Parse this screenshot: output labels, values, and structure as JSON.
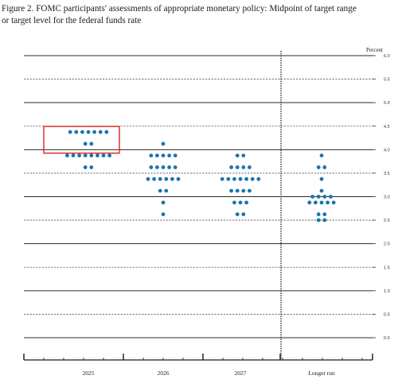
{
  "figure": {
    "caption_line1": "Figure 2. FOMC participants' assessments of appropriate monetary policy: Midpoint of target range",
    "caption_line2": "or target level for the federal funds rate"
  },
  "chart_data": {
    "type": "scatter",
    "title": "Figure 2. FOMC participants' assessments of appropriate monetary policy: Midpoint of target range or target level for the federal funds rate",
    "xlabel": "",
    "ylabel": "Percent",
    "categories": [
      "2025",
      "2026",
      "2027",
      "Longer run"
    ],
    "ylim": [
      0,
      6.0
    ],
    "yticks": [
      "0.0",
      "0.5",
      "1.0",
      "1.5",
      "2.0",
      "2.5",
      "3.0",
      "3.5",
      "4.0",
      "4.5",
      "5.0",
      "5.5",
      "6.0"
    ],
    "grid": true,
    "dot_color": "#1a75a8",
    "highlight_color": "#e0241c",
    "highlight": {
      "category": "2025",
      "y_range": [
        3.875,
        4.375
      ]
    },
    "dots": [
      {
        "category": "2025",
        "y": 4.375,
        "count": 7
      },
      {
        "category": "2025",
        "y": 4.125,
        "count": 2
      },
      {
        "category": "2025",
        "y": 3.875,
        "count": 8
      },
      {
        "category": "2025",
        "y": 3.625,
        "count": 2
      },
      {
        "category": "2026",
        "y": 4.125,
        "count": 1
      },
      {
        "category": "2026",
        "y": 3.875,
        "count": 5
      },
      {
        "category": "2026",
        "y": 3.625,
        "count": 5
      },
      {
        "category": "2026",
        "y": 3.375,
        "count": 6
      },
      {
        "category": "2026",
        "y": 3.125,
        "count": 2
      },
      {
        "category": "2026",
        "y": 2.875,
        "count": 1
      },
      {
        "category": "2026",
        "y": 2.625,
        "count": 1
      },
      {
        "category": "2027",
        "y": 3.875,
        "count": 2
      },
      {
        "category": "2027",
        "y": 3.625,
        "count": 4
      },
      {
        "category": "2027",
        "y": 3.375,
        "count": 7
      },
      {
        "category": "2027",
        "y": 3.125,
        "count": 4
      },
      {
        "category": "2027",
        "y": 2.875,
        "count": 3
      },
      {
        "category": "2027",
        "y": 2.625,
        "count": 2
      },
      {
        "category": "Longer run",
        "y": 3.875,
        "count": 1
      },
      {
        "category": "Longer run",
        "y": 3.625,
        "count": 2
      },
      {
        "category": "Longer run",
        "y": 3.375,
        "count": 1
      },
      {
        "category": "Longer run",
        "y": 3.125,
        "count": 1
      },
      {
        "category": "Longer run",
        "y": 3.0,
        "count": 4
      },
      {
        "category": "Longer run",
        "y": 2.875,
        "count": 5
      },
      {
        "category": "Longer run",
        "y": 2.625,
        "count": 2
      },
      {
        "category": "Longer run",
        "y": 2.5,
        "count": 2
      }
    ]
  }
}
